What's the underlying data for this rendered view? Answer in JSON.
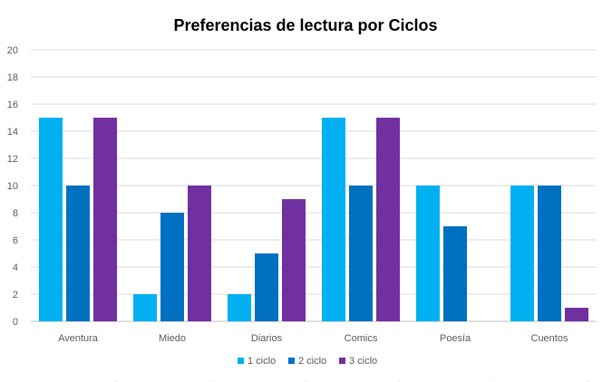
{
  "chart_data": {
    "type": "bar",
    "title": "Preferencias de lectura por Ciclos",
    "categories": [
      "Aventura",
      "Miedo",
      "Diarios",
      "Comics",
      "Poesía",
      "Cuentos"
    ],
    "series": [
      {
        "name": "1  ciclo",
        "color": "#00B0F0",
        "values": [
          15,
          2,
          2,
          15,
          10,
          10
        ]
      },
      {
        "name": "2 ciclo",
        "color": "#0070C0",
        "values": [
          10,
          8,
          5,
          10,
          7,
          10
        ]
      },
      {
        "name": "3 ciclo",
        "color": "#7030A0",
        "values": [
          15,
          10,
          9,
          15,
          0,
          1
        ]
      }
    ],
    "ylim": [
      0,
      20
    ],
    "yticks": [
      0,
      2,
      4,
      6,
      8,
      10,
      12,
      14,
      16,
      18,
      20
    ],
    "grid": true,
    "legend_position": "bottom"
  }
}
